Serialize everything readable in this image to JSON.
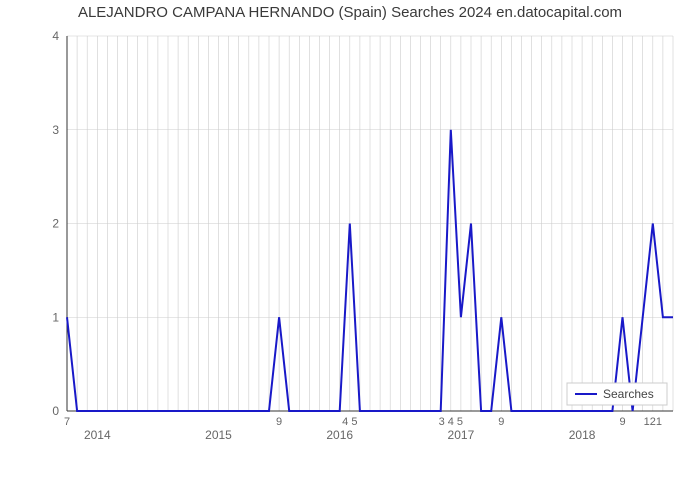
{
  "title": "ALEJANDRO CAMPANA HERNANDO (Spain) Searches 2024 en.datocapital.com",
  "legend_label": "Searches",
  "chart": {
    "type": "line",
    "background_color": "#ffffff",
    "grid_color": "#cccccc",
    "grid_width": 0.6,
    "axis_color": "#333333",
    "line_color": "#1919c8",
    "line_width": 2,
    "legend_box_stroke": "#cccccc",
    "legend_box_fill": "#ffffff",
    "title_color": "#3a3a3a",
    "title_fontsize": 15,
    "tick_fontsize": 12,
    "point_label_fontsize": 11,
    "point_label_color": "#666666",
    "x": {
      "min": 0,
      "max": 60
    },
    "y": {
      "min": 0,
      "max": 4,
      "ticks": [
        0,
        1,
        2,
        3,
        4
      ]
    },
    "x_minor_step": 1,
    "x_major_positions": [
      3,
      15,
      27,
      39,
      51
    ],
    "x_major_labels": [
      "2014",
      "2015",
      "2016",
      "2017",
      "2018"
    ],
    "data": [
      {
        "x": 0,
        "y": 1
      },
      {
        "x": 1,
        "y": 0
      },
      {
        "x": 2,
        "y": 0
      },
      {
        "x": 3,
        "y": 0
      },
      {
        "x": 4,
        "y": 0
      },
      {
        "x": 5,
        "y": 0
      },
      {
        "x": 6,
        "y": 0
      },
      {
        "x": 7,
        "y": 0
      },
      {
        "x": 8,
        "y": 0
      },
      {
        "x": 9,
        "y": 0
      },
      {
        "x": 10,
        "y": 0
      },
      {
        "x": 11,
        "y": 0
      },
      {
        "x": 12,
        "y": 0
      },
      {
        "x": 13,
        "y": 0
      },
      {
        "x": 14,
        "y": 0
      },
      {
        "x": 15,
        "y": 0
      },
      {
        "x": 16,
        "y": 0
      },
      {
        "x": 17,
        "y": 0
      },
      {
        "x": 18,
        "y": 0
      },
      {
        "x": 19,
        "y": 0
      },
      {
        "x": 20,
        "y": 0
      },
      {
        "x": 21,
        "y": 1
      },
      {
        "x": 22,
        "y": 0
      },
      {
        "x": 23,
        "y": 0
      },
      {
        "x": 24,
        "y": 0
      },
      {
        "x": 25,
        "y": 0
      },
      {
        "x": 26,
        "y": 0
      },
      {
        "x": 27,
        "y": 0
      },
      {
        "x": 28,
        "y": 2
      },
      {
        "x": 29,
        "y": 0
      },
      {
        "x": 30,
        "y": 0
      },
      {
        "x": 31,
        "y": 0
      },
      {
        "x": 32,
        "y": 0
      },
      {
        "x": 33,
        "y": 0
      },
      {
        "x": 34,
        "y": 0
      },
      {
        "x": 35,
        "y": 0
      },
      {
        "x": 36,
        "y": 0
      },
      {
        "x": 37,
        "y": 0
      },
      {
        "x": 38,
        "y": 3
      },
      {
        "x": 39,
        "y": 1
      },
      {
        "x": 40,
        "y": 2
      },
      {
        "x": 41,
        "y": 0
      },
      {
        "x": 42,
        "y": 0
      },
      {
        "x": 43,
        "y": 1
      },
      {
        "x": 44,
        "y": 0
      },
      {
        "x": 45,
        "y": 0
      },
      {
        "x": 46,
        "y": 0
      },
      {
        "x": 47,
        "y": 0
      },
      {
        "x": 48,
        "y": 0
      },
      {
        "x": 49,
        "y": 0
      },
      {
        "x": 50,
        "y": 0
      },
      {
        "x": 51,
        "y": 0
      },
      {
        "x": 52,
        "y": 0
      },
      {
        "x": 53,
        "y": 0
      },
      {
        "x": 54,
        "y": 0
      },
      {
        "x": 55,
        "y": 1
      },
      {
        "x": 56,
        "y": 0
      },
      {
        "x": 57,
        "y": 1
      },
      {
        "x": 58,
        "y": 2
      },
      {
        "x": 59,
        "y": 1
      },
      {
        "x": 60,
        "y": 1
      }
    ],
    "point_labels": [
      {
        "x": 0,
        "label": "7"
      },
      {
        "x": 21,
        "label": "9"
      },
      {
        "x": 28,
        "label": "4 5"
      },
      {
        "x": 38,
        "label": "3 4 5"
      },
      {
        "x": 43,
        "label": "9"
      },
      {
        "x": 55,
        "label": "9"
      },
      {
        "x": 58,
        "label": "121"
      }
    ]
  }
}
